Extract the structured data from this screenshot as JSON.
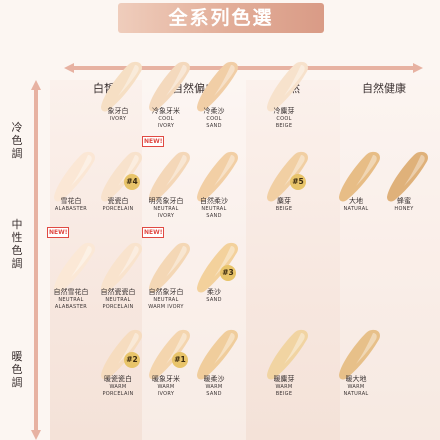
{
  "title": "全系列色選",
  "columns": [
    "白皙",
    "自然偏白",
    "自然",
    "自然健康"
  ],
  "rows": [
    "冷色調",
    "中性色調",
    "暖色調"
  ],
  "rows_split": [
    [
      "冷",
      "色",
      "調"
    ],
    [
      "中",
      "性",
      "色",
      "調"
    ],
    [
      "暖",
      "色",
      "調"
    ]
  ],
  "badges": {
    "new": "NEW!"
  },
  "shades": [
    {
      "zh": "象牙白",
      "en": [
        "IVORY"
      ],
      "color": "#f6dfc4",
      "badge": "",
      "num": ""
    },
    {
      "zh": "冷象牙米",
      "en": [
        "COOL",
        "IVORY"
      ],
      "color": "#f4d9bd",
      "badge": "",
      "num": ""
    },
    {
      "zh": "冷柔沙",
      "en": [
        "COOL",
        "SAND"
      ],
      "color": "#f1cea6",
      "badge": "",
      "num": ""
    },
    {
      "zh": "冷麋芽",
      "en": [
        "COOL",
        "BEIGE"
      ],
      "color": "#f7e2cc",
      "badge": "",
      "num": ""
    },
    {
      "zh": "雪花白",
      "en": [
        "ALABASTER"
      ],
      "color": "#fbe7d5",
      "badge": "",
      "num": ""
    },
    {
      "zh": "瓷瓷白",
      "en": [
        "PORCELAIN"
      ],
      "color": "#f8e2cc",
      "badge": "",
      "num": "#4"
    },
    {
      "zh": "明亮象牙白",
      "en": [
        "NEUTRAL",
        "IVORY"
      ],
      "color": "#f4d7b8",
      "badge": "NEW!",
      "num": ""
    },
    {
      "zh": "自然柔沙",
      "en": [
        "NEUTRAL",
        "SAND"
      ],
      "color": "#f2cfa5",
      "badge": "",
      "num": ""
    },
    {
      "zh": "麋芽",
      "en": [
        "BEIGE"
      ],
      "color": "#f1cfa3",
      "badge": "",
      "num": "#5"
    },
    {
      "zh": "大地",
      "en": [
        "NATURAL"
      ],
      "color": "#e7bd86",
      "badge": "",
      "num": ""
    },
    {
      "zh": "蜂蜜",
      "en": [
        "HONEY"
      ],
      "color": "#dfb17a",
      "badge": "",
      "num": ""
    },
    {
      "zh": "自然雪花白",
      "en": [
        "NEUTRAL",
        "ALABASTER"
      ],
      "color": "#fbe8d6",
      "badge": "NEW!",
      "num": ""
    },
    {
      "zh": "自然瓷瓷白",
      "en": [
        "NEUTRAL",
        "PORCELAIN"
      ],
      "color": "#f9e3cd",
      "badge": "",
      "num": ""
    },
    {
      "zh": "自然象牙白",
      "en": [
        "NEUTRAL",
        "WARM IVORY"
      ],
      "color": "#f4d7b5",
      "badge": "NEW!",
      "num": ""
    },
    {
      "zh": "柔沙",
      "en": [
        "SAND"
      ],
      "color": "#f3d19c",
      "badge": "",
      "num": "#3"
    },
    {
      "zh": "暖瓷瓷白",
      "en": [
        "WARM",
        "PORCELAIN"
      ],
      "color": "#f6dcbf",
      "badge": "",
      "num": "#2"
    },
    {
      "zh": "暖象牙米",
      "en": [
        "WARM",
        "IVORY"
      ],
      "color": "#f4d5ae",
      "badge": "",
      "num": "#1"
    },
    {
      "zh": "暖柔沙",
      "en": [
        "WARM",
        "SAND"
      ],
      "color": "#f0cd9c",
      "badge": "",
      "num": ""
    },
    {
      "zh": "暖麋芽",
      "en": [
        "WARM",
        "BEIGE"
      ],
      "color": "#f1d4a2",
      "badge": "",
      "num": ""
    },
    {
      "zh": "暖大地",
      "en": [
        "WARM",
        "NATURAL"
      ],
      "color": "#e7c089",
      "badge": "",
      "num": ""
    }
  ]
}
